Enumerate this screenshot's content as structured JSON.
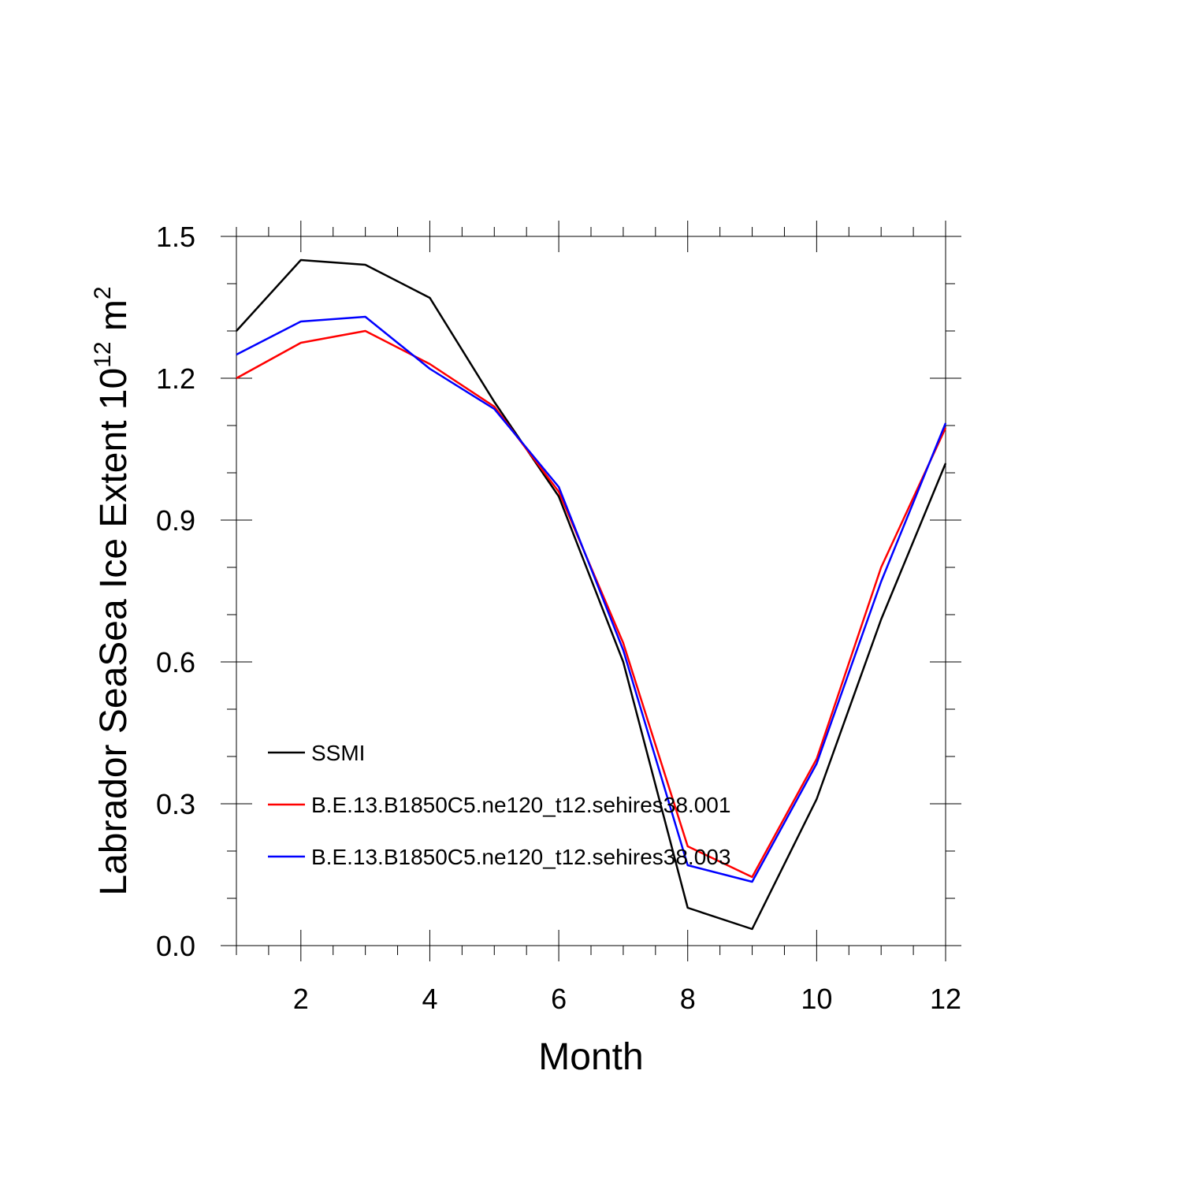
{
  "chart_data": {
    "type": "line",
    "title": "",
    "xlabel": "Month",
    "ylabel": "Labrador SeaSea Ice Extent 10",
    "ylabel_exponent": "12",
    "ylabel_unit": " m",
    "ylabel_unit_exponent": "2",
    "xlim": [
      1,
      12
    ],
    "ylim": [
      0.0,
      1.5
    ],
    "xticks": [
      2,
      4,
      6,
      8,
      10,
      12
    ],
    "xtick_labels": [
      "2",
      "4",
      "6",
      "8",
      "10",
      "12"
    ],
    "yticks": [
      0.0,
      0.3,
      0.6,
      0.9,
      1.2,
      1.5
    ],
    "ytick_labels": [
      "0.0",
      "0.3",
      "0.6",
      "0.9",
      "1.2",
      "1.5"
    ],
    "x_minor_step": 0.5,
    "y_minor_step": 0.1,
    "grid": false,
    "legend_position": "lower-left",
    "x": [
      1,
      2,
      3,
      4,
      5,
      6,
      7,
      8,
      9,
      10,
      11,
      12
    ],
    "series": [
      {
        "name": "SSMI",
        "color": "#000000",
        "values": [
          1.3,
          1.45,
          1.44,
          1.37,
          1.15,
          0.95,
          0.6,
          0.08,
          0.035,
          0.31,
          0.69,
          1.02
        ]
      },
      {
        "name": "B.E.13.B1850C5.ne120_t12.sehires38.001",
        "color": "#ff0000",
        "values": [
          1.2,
          1.275,
          1.3,
          1.23,
          1.14,
          0.96,
          0.64,
          0.21,
          0.145,
          0.395,
          0.8,
          1.095
        ]
      },
      {
        "name": "B.E.13.B1850C5.ne120_t12.sehires38.003",
        "color": "#0000ff",
        "values": [
          1.25,
          1.32,
          1.33,
          1.22,
          1.135,
          0.97,
          0.625,
          0.17,
          0.135,
          0.385,
          0.77,
          1.105
        ]
      }
    ]
  }
}
